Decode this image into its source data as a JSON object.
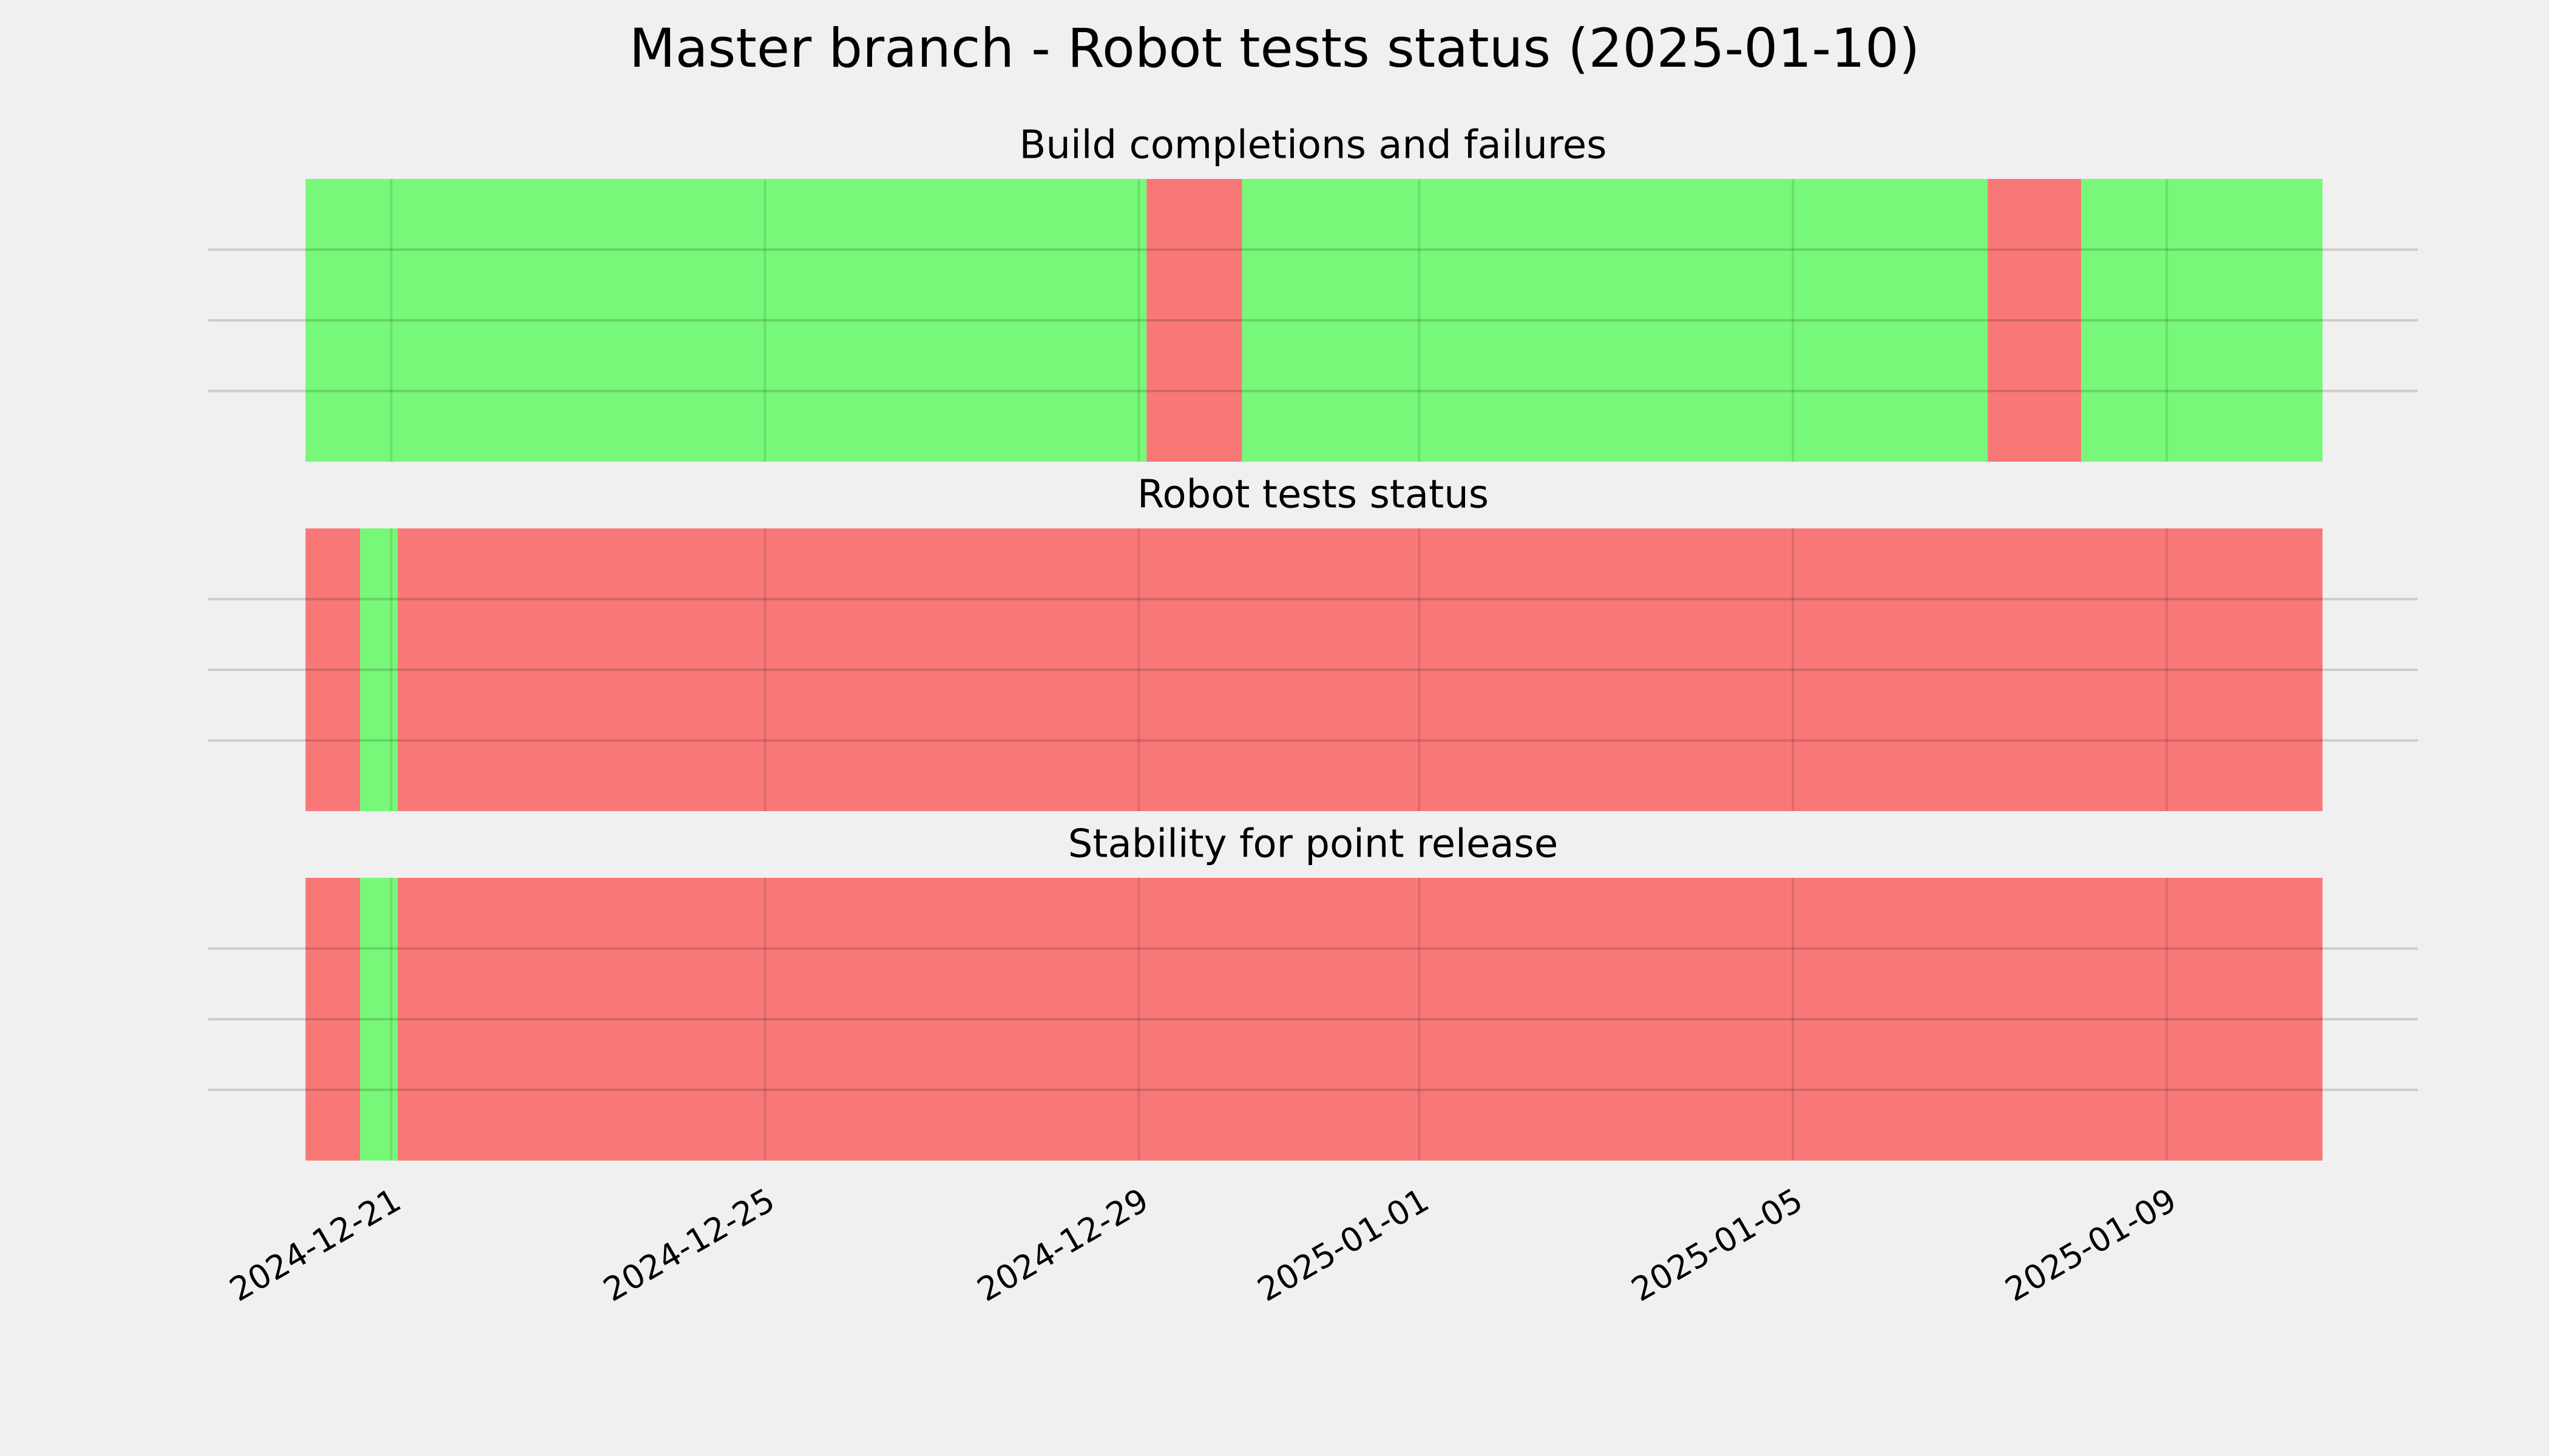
{
  "title": "Master branch - Robot tests status (2025-01-10)",
  "chart_data": [
    {
      "type": "timeline",
      "title": "Build completions and failures",
      "xlim": [
        "2024-12-19T01:00",
        "2025-01-11T16:30"
      ],
      "xticks": [
        "2024-12-21",
        "2024-12-25",
        "2024-12-29",
        "2025-01-01",
        "2025-01-05",
        "2025-01-09"
      ],
      "grid": true,
      "spans": [
        {
          "start": "2024-12-20T02:00",
          "end": "2024-12-29T02:00",
          "color": "lime"
        },
        {
          "start": "2024-12-29T02:00",
          "end": "2024-12-30T02:30",
          "color": "red"
        },
        {
          "start": "2024-12-30T02:30",
          "end": "2025-01-07T02:00",
          "color": "lime"
        },
        {
          "start": "2025-01-07T02:00",
          "end": "2025-01-08T02:00",
          "color": "red"
        },
        {
          "start": "2025-01-08T02:00",
          "end": "2025-01-10T16:00",
          "color": "lime"
        }
      ]
    },
    {
      "type": "timeline",
      "title": "Robot tests status",
      "xlim": [
        "2024-12-19T01:00",
        "2025-01-11T16:30"
      ],
      "xticks": [
        "2024-12-21",
        "2024-12-25",
        "2024-12-29",
        "2025-01-01",
        "2025-01-05",
        "2025-01-09"
      ],
      "grid": true,
      "spans": [
        {
          "start": "2024-12-20T02:00",
          "end": "2024-12-20T16:00",
          "color": "red"
        },
        {
          "start": "2024-12-20T16:00",
          "end": "2024-12-21T01:40",
          "color": "lime"
        },
        {
          "start": "2024-12-21T01:40",
          "end": "2025-01-10T16:00",
          "color": "red"
        }
      ]
    },
    {
      "type": "timeline",
      "title": "Stability for point release",
      "xlim": [
        "2024-12-19T01:00",
        "2025-01-11T16:30"
      ],
      "xticks": [
        "2024-12-21",
        "2024-12-25",
        "2024-12-29",
        "2025-01-01",
        "2025-01-05",
        "2025-01-09"
      ],
      "grid": true,
      "show_xtick_labels": true,
      "spans": [
        {
          "start": "2024-12-20T02:00",
          "end": "2024-12-20T16:00",
          "color": "red"
        },
        {
          "start": "2024-12-20T16:00",
          "end": "2024-12-21T01:40",
          "color": "lime"
        },
        {
          "start": "2024-12-21T01:40",
          "end": "2025-01-10T16:00",
          "color": "red"
        }
      ]
    }
  ]
}
